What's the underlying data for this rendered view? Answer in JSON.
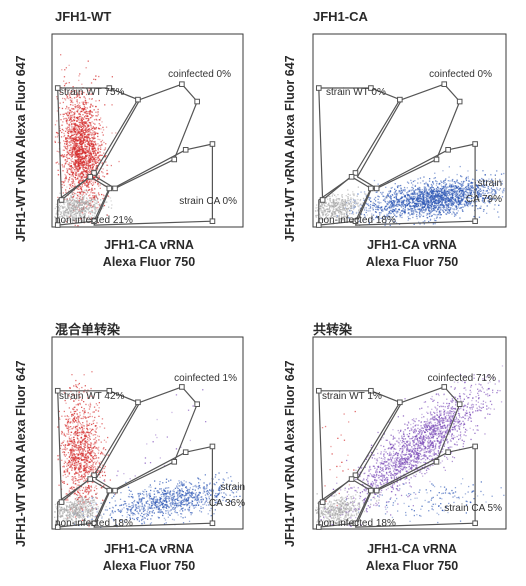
{
  "chart_data": [
    {
      "type": "scatter",
      "title": "JFH1-WT",
      "xlabel_line1": "JFH1-CA vRNA",
      "xlabel_line2": "Alexa Fluor 750",
      "ylabel": "JFH1-WT vRNA Alexa Fluor 647",
      "populations": [
        {
          "name": "strain WT",
          "percent": 75,
          "label": "strain WT 75%",
          "color": "#d42a2a"
        },
        {
          "name": "strain CA",
          "percent": 0,
          "label": "strain CA 0%",
          "color": "#2d57b5"
        },
        {
          "name": "coinfected",
          "percent": 0,
          "label": "coinfected 0%",
          "color": "#7b4bb8"
        },
        {
          "name": "non-infected",
          "percent": 21,
          "label": "non-infected 21%",
          "color": "#a8a8a8"
        }
      ]
    },
    {
      "type": "scatter",
      "title": "JFH1-CA",
      "xlabel_line1": "JFH1-CA vRNA",
      "xlabel_line2": "Alexa Fluor 750",
      "ylabel": "JFH1-WT vRNA Alexa Fluor 647",
      "populations": [
        {
          "name": "strain WT",
          "percent": 0,
          "label": "strain WT 0%",
          "color": "#d42a2a"
        },
        {
          "name": "strain CA",
          "percent": 79,
          "label_line1": "strain",
          "label_line2": "CA 79%",
          "color": "#2d57b5"
        },
        {
          "name": "coinfected",
          "percent": 0,
          "label": "coinfected 0%",
          "color": "#7b4bb8"
        },
        {
          "name": "non-infected",
          "percent": 18,
          "label": "non-infected 18%",
          "color": "#a8a8a8"
        }
      ]
    },
    {
      "type": "scatter",
      "title": "混合单转染",
      "xlabel_line1": "JFH1-CA vRNA",
      "xlabel_line2": "Alexa Fluor 750",
      "ylabel": "JFH1-WT vRNA Alexa Fluor 647",
      "populations": [
        {
          "name": "strain WT",
          "percent": 42,
          "label": "strain WT 42%",
          "color": "#d42a2a"
        },
        {
          "name": "strain CA",
          "percent": 36,
          "label_line1": "strain",
          "label_line2": "CA 36%",
          "color": "#2d57b5"
        },
        {
          "name": "coinfected",
          "percent": 1,
          "label": "coinfected 1%",
          "color": "#7b4bb8"
        },
        {
          "name": "non-infected",
          "percent": 18,
          "label": "non-infected 18%",
          "color": "#a8a8a8"
        }
      ]
    },
    {
      "type": "scatter",
      "title": "共转染",
      "xlabel_line1": "JFH1-CA vRNA",
      "xlabel_line2": "Alexa Fluor 750",
      "ylabel": "JFH1-WT vRNA Alexa Fluor 647",
      "populations": [
        {
          "name": "strain WT",
          "percent": 1,
          "label": "strain WT 1%",
          "color": "#d42a2a"
        },
        {
          "name": "strain CA",
          "percent": 5,
          "label": "strain CA 5%",
          "color": "#2d57b5"
        },
        {
          "name": "coinfected",
          "percent": 71,
          "label": "coinfected 71%",
          "color": "#7b4bb8"
        },
        {
          "name": "non-infected",
          "percent": 18,
          "label": "non-infected 18%",
          "color": "#a8a8a8"
        }
      ]
    }
  ]
}
